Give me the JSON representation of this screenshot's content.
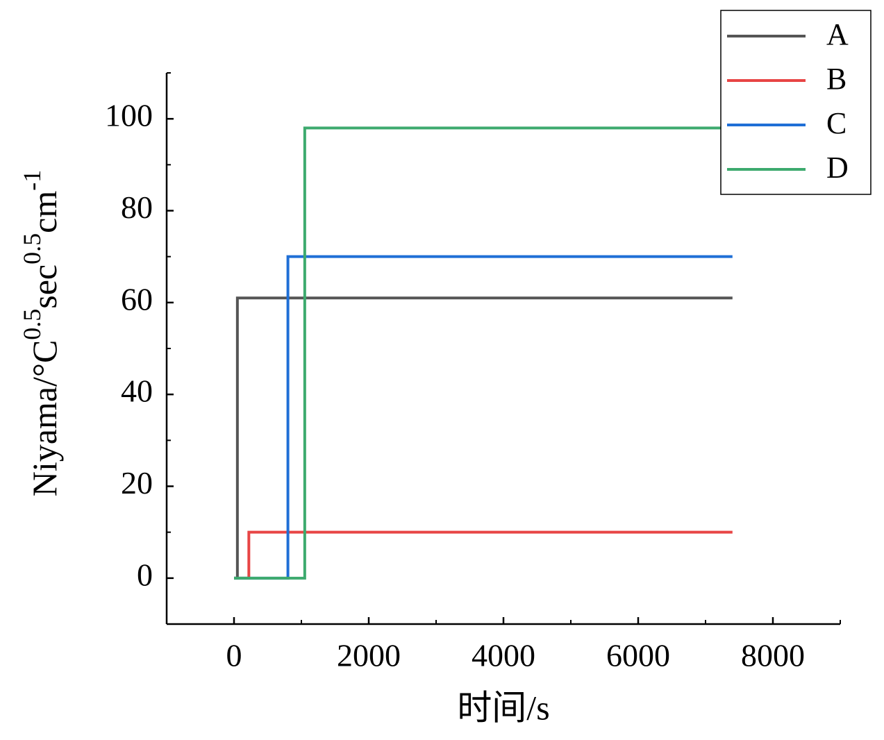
{
  "chart_data": {
    "type": "line",
    "xlabel": "时间/s",
    "ylabel": [
      "Niyama/°C",
      "0.5",
      "sec",
      "0.5",
      "cm",
      "-1"
    ],
    "ylabel_superscript": [
      false,
      true,
      false,
      true,
      false,
      true
    ],
    "xlim": [
      -1000,
      9000
    ],
    "xticks": [
      0,
      2000,
      4000,
      6000,
      8000
    ],
    "xminorticks": [
      1000,
      3000,
      5000,
      7000,
      9000
    ],
    "ylim": [
      -10,
      110
    ],
    "yticks": [
      0,
      20,
      40,
      60,
      80,
      100
    ],
    "yminorticks": [
      10,
      30,
      50,
      70,
      90,
      110
    ],
    "legend": "upper right",
    "series": [
      {
        "name": "A",
        "color": "#555555",
        "x": [
          0,
          50,
          50,
          7400
        ],
        "values": [
          0,
          0,
          61,
          61
        ]
      },
      {
        "name": "B",
        "color": "#e84545",
        "x": [
          0,
          220,
          220,
          7400
        ],
        "values": [
          0,
          0,
          10,
          10
        ]
      },
      {
        "name": "C",
        "color": "#1f6fd6",
        "x": [
          0,
          800,
          800,
          7400
        ],
        "values": [
          0,
          0,
          70,
          70
        ]
      },
      {
        "name": "D",
        "color": "#3daa6e",
        "x": [
          0,
          1050,
          1050,
          7400
        ],
        "values": [
          0,
          0,
          98,
          98
        ]
      }
    ]
  }
}
